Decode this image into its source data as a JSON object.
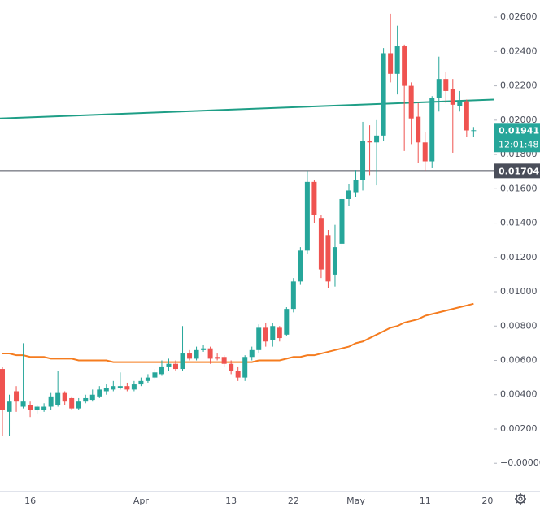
{
  "chart_data": {
    "type": "candlestick",
    "categories": [
      null,
      null,
      null,
      null,
      "16",
      null,
      null,
      null,
      null,
      null,
      null,
      null,
      null,
      null,
      null,
      null,
      null,
      null,
      null,
      null,
      "Apr",
      null,
      null,
      null,
      null,
      null,
      null,
      null,
      null,
      null,
      null,
      null,
      null,
      "13",
      null,
      null,
      null,
      null,
      null,
      null,
      null,
      null,
      "22",
      null,
      null,
      null,
      null,
      null,
      null,
      null,
      null,
      "May",
      null,
      null,
      null,
      null,
      null,
      null,
      null,
      null,
      null,
      "11",
      null,
      null,
      null,
      null,
      null,
      null,
      null,
      null,
      "20"
    ],
    "open": [
      0.0055,
      0.003,
      0.0042,
      0.0033,
      0.0034,
      0.0031,
      0.0031,
      0.0033,
      0.0034,
      0.0041,
      0.0038,
      0.0032,
      0.0036,
      0.0037,
      0.0039,
      0.0042,
      0.0043,
      0.0044,
      0.0045,
      0.0043,
      0.0046,
      0.0048,
      0.005,
      0.0052,
      0.0056,
      0.0058,
      0.0055,
      0.0064,
      0.0061,
      0.0066,
      0.0067,
      0.0062,
      0.0062,
      0.0058,
      0.0054,
      0.005,
      0.0062,
      0.0066,
      0.0079,
      0.0072,
      0.0079,
      0.0075,
      0.009,
      0.0106,
      0.0124,
      0.0164,
      0.0143,
      0.0133,
      0.011,
      0.0128,
      0.0154,
      0.0158,
      0.0165,
      0.0188,
      0.0187,
      0.0191,
      0.0239,
      0.0227,
      0.0243,
      0.022,
      0.0202,
      0.0187,
      0.0176,
      0.0213,
      0.0224,
      0.0218,
      0.0208,
      0.0211,
      0.0194,
      null,
      null
    ],
    "high": [
      0.0056,
      0.004,
      0.0045,
      0.007,
      0.0036,
      0.0034,
      0.0035,
      0.0041,
      0.0054,
      0.0042,
      0.0039,
      0.0038,
      0.004,
      0.0043,
      0.0045,
      0.0046,
      0.0048,
      0.0053,
      0.0047,
      0.0048,
      0.005,
      0.0052,
      0.0055,
      0.006,
      0.0061,
      0.006,
      0.008,
      0.0066,
      0.0068,
      0.0069,
      0.0068,
      0.0064,
      0.0063,
      0.006,
      0.0056,
      0.0063,
      0.0068,
      0.0081,
      0.0082,
      0.0082,
      0.008,
      0.0091,
      0.0108,
      0.0126,
      0.017,
      0.0165,
      0.0145,
      0.0136,
      0.0139,
      0.0156,
      0.0163,
      0.0171,
      0.0199,
      0.0197,
      0.02,
      0.0242,
      0.0262,
      0.0255,
      0.0244,
      0.0222,
      0.021,
      0.0193,
      0.0214,
      0.0237,
      0.0228,
      0.0224,
      0.0217,
      0.0212,
      0.0196,
      null,
      null
    ],
    "low": [
      0.0016,
      0.0016,
      0.003,
      0.0032,
      0.0027,
      0.0029,
      0.003,
      0.0031,
      0.0033,
      0.0034,
      0.0031,
      0.0031,
      0.0035,
      0.0036,
      0.0038,
      0.004,
      0.0042,
      0.0043,
      0.0042,
      0.0042,
      0.0045,
      0.0047,
      0.0049,
      0.0051,
      0.0054,
      0.0054,
      0.0054,
      0.006,
      0.006,
      0.0065,
      0.0058,
      0.006,
      0.0056,
      0.0052,
      0.0048,
      0.0048,
      0.006,
      0.0064,
      0.0068,
      0.0068,
      0.0071,
      0.0074,
      0.0088,
      0.0104,
      0.0122,
      0.014,
      0.0108,
      0.0102,
      0.0103,
      0.0125,
      0.015,
      0.0155,
      0.0159,
      0.0168,
      0.0162,
      0.0188,
      0.0222,
      0.0215,
      0.0182,
      0.0186,
      0.0175,
      0.017,
      0.0172,
      0.0205,
      0.021,
      0.0181,
      0.0205,
      0.019,
      0.019,
      null,
      null
    ],
    "close": [
      0.0031,
      0.0036,
      0.0036,
      0.0036,
      0.0031,
      0.0033,
      0.0033,
      0.0039,
      0.0041,
      0.0036,
      0.0032,
      0.0036,
      0.0038,
      0.004,
      0.0043,
      0.0044,
      0.0045,
      0.0045,
      0.0043,
      0.0046,
      0.0048,
      0.005,
      0.0053,
      0.0056,
      0.0058,
      0.0055,
      0.0064,
      0.0061,
      0.0066,
      0.0067,
      0.0061,
      0.0061,
      0.0058,
      0.0054,
      0.005,
      0.0062,
      0.0066,
      0.0079,
      0.0071,
      0.008,
      0.0073,
      0.009,
      0.0106,
      0.0124,
      0.0164,
      0.0145,
      0.0113,
      0.0106,
      0.0126,
      0.0154,
      0.0159,
      0.0165,
      0.0188,
      0.0187,
      0.0191,
      0.0239,
      0.0227,
      0.0243,
      0.022,
      0.0201,
      0.0187,
      0.0176,
      0.0213,
      0.0224,
      0.0217,
      0.0209,
      0.0211,
      0.0194,
      0.01941,
      null,
      null
    ],
    "up_color": "#26a69a",
    "down_color": "#ef5350",
    "ma": {
      "color": "#f57c1f",
      "values": [
        0.0064,
        0.0064,
        0.0063,
        0.0063,
        0.0062,
        0.0062,
        0.0062,
        0.0061,
        0.0061,
        0.0061,
        0.0061,
        0.006,
        0.006,
        0.006,
        0.006,
        0.006,
        0.0059,
        0.0059,
        0.0059,
        0.0059,
        0.0059,
        0.0059,
        0.0059,
        0.0059,
        0.0059,
        0.0059,
        0.0059,
        0.0059,
        0.0059,
        0.0059,
        0.0059,
        0.0059,
        0.0059,
        0.0059,
        0.0059,
        0.0059,
        0.0059,
        0.006,
        0.006,
        0.006,
        0.006,
        0.0061,
        0.0062,
        0.0062,
        0.0063,
        0.0063,
        0.0064,
        0.0065,
        0.0066,
        0.0067,
        0.0068,
        0.007,
        0.0071,
        0.0073,
        0.0075,
        0.0077,
        0.0079,
        0.008,
        0.0082,
        0.0083,
        0.0084,
        0.0086,
        0.0087,
        0.0088,
        0.0089,
        0.009,
        0.0091,
        0.0092,
        0.0093,
        null,
        null
      ]
    },
    "trend_line": {
      "color": "#1e9e86",
      "values": [
        0.0201,
        0.0212
      ]
    },
    "price_line": {
      "value": 0.01704,
      "color": "#4a4e5a"
    },
    "last_price": {
      "value": 0.01941,
      "countdown": "12:01:48",
      "color": "#26a69a"
    },
    "ylim": [
      -0.0016,
      0.027
    ],
    "yticks": [
      {
        "value": 0,
        "label": "−0.00000"
      },
      {
        "value": 0.002,
        "label": "0.00200"
      },
      {
        "value": 0.004,
        "label": "0.00400"
      },
      {
        "value": 0.006,
        "label": "0.00600"
      },
      {
        "value": 0.008,
        "label": "0.00800"
      },
      {
        "value": 0.01,
        "label": "0.01000"
      },
      {
        "value": 0.012,
        "label": "0.01200"
      },
      {
        "value": 0.014,
        "label": "0.01400"
      },
      {
        "value": 0.016,
        "label": "0.01600"
      },
      {
        "value": 0.018,
        "label": "0.01800"
      },
      {
        "value": 0.02,
        "label": "0.02000"
      },
      {
        "value": 0.022,
        "label": "0.02200"
      },
      {
        "value": 0.024,
        "label": "0.02400"
      },
      {
        "value": 0.026,
        "label": "0.02600"
      }
    ]
  }
}
